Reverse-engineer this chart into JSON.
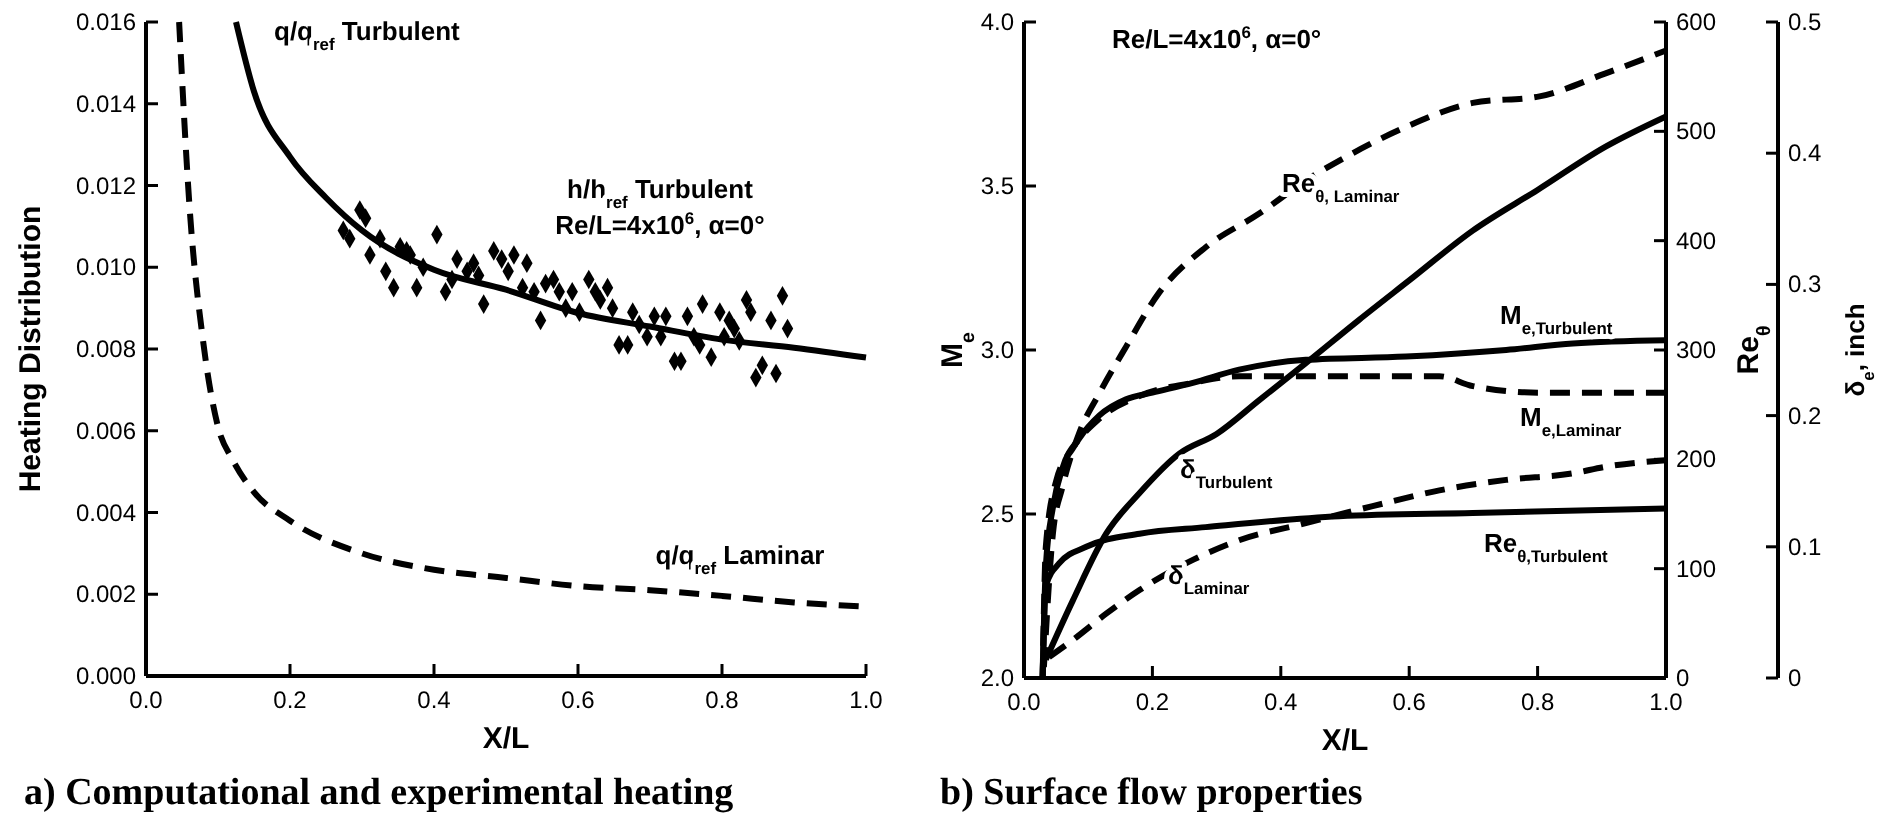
{
  "chart_data": [
    {
      "type": "line",
      "title": "a) Computational and experimental heating",
      "xlabel": "X/L",
      "ylabel": "Heating Distribution",
      "xlim": [
        0,
        1
      ],
      "xticks": [
        {
          "value": 0,
          "label": "0.0"
        },
        {
          "value": 0.2,
          "label": "0.2"
        },
        {
          "value": 0.4,
          "label": "0.4"
        },
        {
          "value": 0.6,
          "label": "0.6"
        },
        {
          "value": 0.8,
          "label": "0.8"
        },
        {
          "value": 1,
          "label": "1.0"
        }
      ],
      "ylim": [
        0,
        0.016
      ],
      "yticks": [
        {
          "value": 0,
          "label": "0.000"
        },
        {
          "value": 0.002,
          "label": "0.002"
        },
        {
          "value": 0.004,
          "label": "0.004"
        },
        {
          "value": 0.006,
          "label": "0.006"
        },
        {
          "value": 0.008,
          "label": "0.008"
        },
        {
          "value": 0.01,
          "label": "0.010"
        },
        {
          "value": 0.012,
          "label": "0.012"
        },
        {
          "value": 0.014,
          "label": "0.014"
        },
        {
          "value": 0.016,
          "label": "0.016"
        }
      ],
      "grid": false,
      "legend": false,
      "annotations": [
        "Re/L=4x10$^{6}$, α=0°"
      ],
      "series": [
        {
          "name": "q/q$_{ref}$ Turbulent",
          "line_style": "solid",
          "color": "#000000",
          "x": [
            0.125,
            0.15,
            0.2,
            0.25,
            0.3,
            0.4,
            0.5,
            0.6,
            0.7,
            0.8,
            0.9,
            1.0
          ],
          "values": [
            0.016,
            0.0143,
            0.0127,
            0.0117,
            0.0109,
            0.00994,
            0.00945,
            0.00888,
            0.00855,
            0.00823,
            0.00803,
            0.00779
          ]
        },
        {
          "name": "q/q$_{ref}$ Laminar",
          "line_style": "dashed",
          "color": "#000000",
          "x": [
            0.046,
            0.06,
            0.08,
            0.1,
            0.12,
            0.15,
            0.2,
            0.3,
            0.4,
            0.5,
            0.6,
            0.7,
            0.8,
            0.9,
            1.0
          ],
          "values": [
            0.016,
            0.0116,
            0.0081,
            0.0061,
            0.0053,
            0.0045,
            0.0038,
            0.003,
            0.0026,
            0.0024,
            0.0022,
            0.0021,
            0.00196,
            0.0018,
            0.0017
          ]
        },
        {
          "name": "h/h$_{ref}$ Turbulent",
          "type": "scatter",
          "marker": "diamond",
          "color": "#000000",
          "x": [
            0.274,
            0.283,
            0.297,
            0.305,
            0.311,
            0.325,
            0.333,
            0.344,
            0.353,
            0.362,
            0.367,
            0.376,
            0.385,
            0.404,
            0.416,
            0.425,
            0.432,
            0.446,
            0.455,
            0.462,
            0.469,
            0.483,
            0.494,
            0.503,
            0.511,
            0.523,
            0.529,
            0.539,
            0.548,
            0.555,
            0.566,
            0.574,
            0.583,
            0.592,
            0.602,
            0.615,
            0.624,
            0.631,
            0.641,
            0.648,
            0.657,
            0.669,
            0.676,
            0.685,
            0.696,
            0.706,
            0.715,
            0.722,
            0.734,
            0.743,
            0.752,
            0.761,
            0.769,
            0.773,
            0.785,
            0.797,
            0.803,
            0.81,
            0.817,
            0.824,
            0.834,
            0.84,
            0.847,
            0.856,
            0.868,
            0.875,
            0.884,
            0.891
          ],
          "values": [
            0.0109,
            0.0107,
            0.0114,
            0.0112,
            0.0103,
            0.0107,
            0.0099,
            0.0095,
            0.0105,
            0.0104,
            0.0103,
            0.0095,
            0.01,
            0.0108,
            0.0094,
            0.0097,
            0.0102,
            0.0099,
            0.0101,
            0.0098,
            0.0091,
            0.0104,
            0.0102,
            0.0099,
            0.0103,
            0.0095,
            0.0101,
            0.0094,
            0.0087,
            0.0096,
            0.0097,
            0.0094,
            0.009,
            0.0094,
            0.0089,
            0.0097,
            0.0094,
            0.0092,
            0.0095,
            0.009,
            0.0081,
            0.0081,
            0.0089,
            0.0086,
            0.0083,
            0.0088,
            0.0083,
            0.0088,
            0.0077,
            0.0077,
            0.0088,
            0.0083,
            0.0081,
            0.0091,
            0.0078,
            0.0089,
            0.0083,
            0.0087,
            0.0085,
            0.0082,
            0.0092,
            0.0089,
            0.0073,
            0.0076,
            0.0087,
            0.0074,
            0.0093,
            0.0085
          ]
        }
      ]
    },
    {
      "type": "line",
      "title": "b) Surface flow properties",
      "xlabel": "X/L",
      "ylabel": "M$_{e}$",
      "y2label": "Re$_{θ}$",
      "y3label": "δ$_{e}$, inch",
      "xlim": [
        0,
        1
      ],
      "xticks": [
        {
          "value": 0,
          "label": "0.0"
        },
        {
          "value": 0.2,
          "label": "0.2"
        },
        {
          "value": 0.4,
          "label": "0.4"
        },
        {
          "value": 0.6,
          "label": "0.6"
        },
        {
          "value": 0.8,
          "label": "0.8"
        },
        {
          "value": 1,
          "label": "1.0"
        }
      ],
      "ylim": [
        2,
        4
      ],
      "yticks": [
        {
          "value": 2,
          "label": "2.0"
        },
        {
          "value": 2.5,
          "label": "2.5"
        },
        {
          "value": 3,
          "label": "3.0"
        },
        {
          "value": 3.5,
          "label": "3.5"
        },
        {
          "value": 4,
          "label": "4.0"
        }
      ],
      "y2lim": [
        0,
        600
      ],
      "y2ticks": [
        0,
        100,
        200,
        300,
        400,
        500,
        600
      ],
      "y3lim": [
        0,
        0.5
      ],
      "y3ticks": [
        0,
        0.1,
        0.2,
        0.3,
        0.4,
        0.5
      ],
      "grid": false,
      "legend": false,
      "annotations": [
        "Re/L=4x10$^{6}$, α=0°"
      ],
      "series": [
        {
          "name": "Re$_{θ, Laminar}$",
          "axis": "y2",
          "line_style": "dashed",
          "color": "#000000",
          "x": [
            0.031,
            0.045,
            0.06,
            0.086,
            0.117,
            0.159,
            0.21,
            0.283,
            0.367,
            0.439,
            0.512,
            0.595,
            0.699,
            0.803,
            0.906,
            1.0
          ],
          "values": [
            10,
            132,
            175,
            224,
            260,
            303,
            352,
            394,
            425,
            455,
            480,
            504,
            526,
            532,
            553,
            574
          ]
        },
        {
          "name": "M$_{e,Turbulent}$",
          "axis": "y",
          "line_style": "solid",
          "color": "#000000",
          "x": [
            0.029,
            0.034,
            0.045,
            0.06,
            0.086,
            0.117,
            0.159,
            0.2,
            0.263,
            0.335,
            0.439,
            0.595,
            0.751,
            0.855,
            1.0
          ],
          "values": [
            2.0,
            2.34,
            2.52,
            2.64,
            2.73,
            2.8,
            2.85,
            2.87,
            2.9,
            2.94,
            2.97,
            2.98,
            3.0,
            3.02,
            3.03
          ]
        },
        {
          "name": "M$_{e,Laminar}$",
          "axis": "y",
          "line_style": "dashed",
          "color": "#000000",
          "x": [
            0.029,
            0.034,
            0.05,
            0.076,
            0.117,
            0.18,
            0.263,
            0.335,
            0.387,
            0.647,
            0.699,
            0.803,
            1.0
          ],
          "values": [
            2.0,
            2.4,
            2.6,
            2.7,
            2.79,
            2.86,
            2.9,
            2.92,
            2.92,
            2.92,
            2.89,
            2.87,
            2.87
          ]
        },
        {
          "name": "δ$_{Turbulent}$",
          "axis": "y3",
          "line_style": "solid",
          "color": "#000000",
          "x": [
            0.034,
            0.076,
            0.128,
            0.18,
            0.242,
            0.3,
            0.367,
            0.439,
            0.522,
            0.6,
            0.699,
            0.8,
            0.906,
            1.0
          ],
          "values": [
            0.014,
            0.059,
            0.11,
            0.141,
            0.171,
            0.186,
            0.212,
            0.24,
            0.273,
            0.303,
            0.341,
            0.372,
            0.405,
            0.428
          ]
        },
        {
          "name": "δ$_{Laminar}$",
          "axis": "y3",
          "line_style": "dashed",
          "color": "#000000",
          "x": [
            0.039,
            0.076,
            0.128,
            0.18,
            0.263,
            0.335,
            0.439,
            0.543,
            0.647,
            0.751,
            0.855,
            0.906,
            1.0
          ],
          "values": [
            0.016,
            0.029,
            0.049,
            0.067,
            0.09,
            0.105,
            0.118,
            0.131,
            0.143,
            0.151,
            0.156,
            0.161,
            0.166
          ]
        },
        {
          "name": "Re$_{θ,Turbulent}$",
          "axis": "y2",
          "line_style": "solid",
          "color": "#000000",
          "x": [
            0.029,
            0.034,
            0.055,
            0.097,
            0.18,
            0.283,
            0.491,
            0.699,
            1.0
          ],
          "values": [
            0,
            84,
            105,
            120,
            132,
            138,
            148,
            151,
            155
          ]
        }
      ]
    }
  ]
}
